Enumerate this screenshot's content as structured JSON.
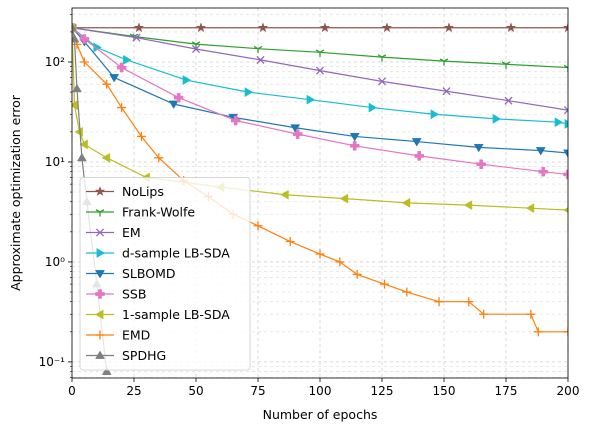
{
  "chart_data": {
    "type": "line",
    "xlabel": "Number of epochs",
    "ylabel": "Approximate optimization error",
    "xlim": [
      0,
      200
    ],
    "xticks": [
      0,
      25,
      50,
      75,
      100,
      125,
      150,
      175,
      200
    ],
    "ylim": [
      0.069,
      347
    ],
    "log_y": true,
    "grid": true,
    "legend": "lower left",
    "yticks": [
      {
        "value": 0.1,
        "label": "10⁻¹"
      },
      {
        "value": 1,
        "label": "10⁰"
      },
      {
        "value": 10,
        "label": "10¹"
      },
      {
        "value": 100,
        "label": "10²"
      }
    ],
    "yminorticks": [
      0.07,
      0.08,
      0.09,
      0.2,
      0.3,
      0.4,
      0.5,
      0.6,
      0.7,
      0.8,
      0.9,
      2,
      3,
      4,
      5,
      6,
      7,
      8,
      9,
      20,
      30,
      40,
      50,
      60,
      70,
      80,
      90,
      200,
      300
    ],
    "series": [
      {
        "name": "NoLips",
        "color": "#8c564b",
        "marker": "star",
        "x": [
          0,
          27,
          52,
          77,
          102,
          127,
          152,
          177,
          200
        ],
        "values": [
          220,
          220,
          220,
          220,
          220,
          220,
          220,
          220,
          220
        ]
      },
      {
        "name": "Frank-Wolfe",
        "color": "#2ca02c",
        "marker": "tri_down",
        "x": [
          0,
          25,
          50,
          75,
          100,
          125,
          150,
          175,
          200
        ],
        "values": [
          220,
          180,
          151,
          136,
          125,
          112,
          102,
          95,
          88
        ]
      },
      {
        "name": "EM",
        "color": "#9467bd",
        "marker": "x",
        "x": [
          0,
          26,
          50,
          76,
          100,
          125,
          151,
          176,
          200
        ],
        "values": [
          220,
          175,
          135,
          105,
          82,
          64,
          51,
          41,
          33
        ]
      },
      {
        "name": "d-sample LB-SDA",
        "color": "#17becf",
        "marker": "tri_right",
        "x": [
          0,
          10,
          22,
          46,
          71,
          96,
          121,
          146,
          171,
          196,
          200
        ],
        "values": [
          220,
          140,
          105,
          66,
          50,
          42,
          35,
          30,
          27,
          25,
          24
        ]
      },
      {
        "name": "SLBOMD",
        "color": "#1f77b4",
        "marker": "tri_down_filled",
        "x": [
          0,
          5,
          17,
          41,
          65,
          90,
          114,
          139,
          164,
          189,
          200
        ],
        "values": [
          220,
          160,
          70,
          38,
          28,
          22,
          18,
          16,
          14,
          13,
          12.3
        ]
      },
      {
        "name": "SSB",
        "color": "#e377c2",
        "marker": "plus_filled",
        "x": [
          0,
          5,
          20,
          43,
          66,
          91,
          114,
          140,
          165,
          190,
          200
        ],
        "values": [
          220,
          170,
          88,
          44,
          26,
          19,
          14.5,
          11.5,
          9.5,
          8,
          7.5
        ]
      },
      {
        "name": "1-sample LB-SDA",
        "color": "#bcbd22",
        "marker": "tri_left",
        "x": [
          0,
          1,
          3,
          5,
          14,
          30,
          60,
          86,
          110,
          135,
          160,
          185,
          200
        ],
        "values": [
          220,
          37,
          20,
          15,
          11,
          7,
          5.6,
          4.7,
          4.3,
          3.9,
          3.7,
          3.45,
          3.3
        ]
      },
      {
        "name": "EMD",
        "color": "#ff7f0e",
        "marker": "plus",
        "x": [
          0,
          2,
          5,
          14,
          20,
          28,
          35,
          45,
          55,
          65,
          75,
          88,
          100,
          108,
          115,
          126,
          135,
          148,
          160,
          166,
          185,
          188,
          200
        ],
        "values": [
          220,
          150,
          100,
          60,
          35,
          18,
          11,
          6.5,
          4.5,
          3,
          2.3,
          1.6,
          1.2,
          1.0,
          0.75,
          0.6,
          0.5,
          0.4,
          0.4,
          0.3,
          0.3,
          0.2,
          0.2
        ]
      },
      {
        "name": "SPDHG",
        "color": "#7f7f7f",
        "marker": "tri_up",
        "x": [
          0,
          1,
          2,
          4,
          6,
          10,
          14
        ],
        "values": [
          220,
          170,
          54,
          11,
          4,
          0.6,
          0.08
        ]
      }
    ]
  }
}
